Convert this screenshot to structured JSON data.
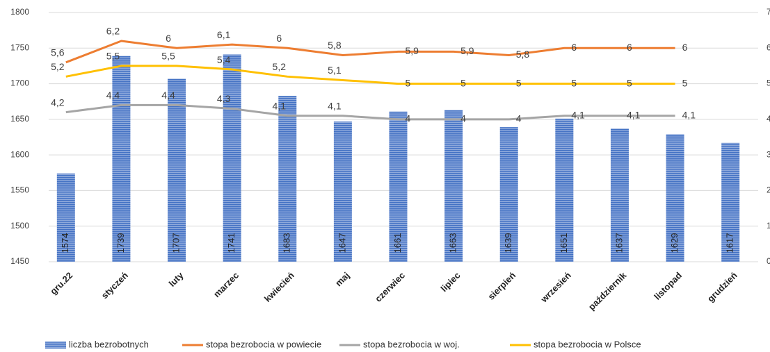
{
  "chart_data": {
    "type": "bar_line",
    "categories": [
      "gru.22",
      "styczeń",
      "luty",
      "marzec",
      "kwiecień",
      "maj",
      "czerwiec",
      "lipiec",
      "sierpień",
      "wrzesień",
      "październik",
      "listopad",
      "grudzień"
    ],
    "series": [
      {
        "name": "liczba bezrobotnych",
        "type": "bar",
        "color": "#4472c4",
        "values": [
          1574,
          1739,
          1707,
          1741,
          1683,
          1647,
          1661,
          1663,
          1639,
          1651,
          1637,
          1629,
          1617
        ]
      },
      {
        "name": "stopa bezrobocia w powiecie",
        "type": "line",
        "axis": "y2",
        "color": "#ed7d31",
        "values": [
          5.6,
          6.2,
          6,
          6.1,
          6,
          5.8,
          5.9,
          5.9,
          5.8,
          6,
          6,
          6,
          null
        ],
        "value_labels": [
          "5,6",
          "6,2",
          "6",
          "6,1",
          "6",
          "5,8",
          "5,9",
          "5,9",
          "5,8",
          "6",
          "6",
          "6",
          null
        ]
      },
      {
        "name": "stopa bezrobocia w woj.",
        "type": "line",
        "axis": "y2",
        "color": "#a5a5a5",
        "values": [
          4.2,
          4.4,
          4.4,
          4.3,
          4.1,
          4.1,
          4,
          4,
          4,
          4.1,
          4.1,
          4.1,
          null
        ],
        "value_labels": [
          "4,2",
          "4,4",
          "4,4",
          "4,3",
          "4,1",
          "4,1",
          "4",
          "4",
          "4",
          "4,1",
          "4,1",
          "4,1",
          null
        ]
      },
      {
        "name": "stopa bezrobocia w Polsce",
        "type": "line",
        "axis": "y2",
        "color": "#ffc000",
        "values": [
          5.2,
          5.5,
          5.5,
          5.4,
          5.2,
          5.1,
          5,
          5,
          5,
          5,
          5,
          5,
          null
        ],
        "value_labels": [
          "5,2",
          "5,5",
          "5,5",
          "5,4",
          "5,2",
          "5,1",
          "5",
          "5",
          "5",
          "5",
          "5",
          "5",
          null
        ]
      }
    ],
    "ylim": [
      1450,
      1800
    ],
    "yticks": [
      1450,
      1500,
      1550,
      1600,
      1650,
      1700,
      1750,
      1800
    ],
    "y2lim": [
      0,
      7
    ],
    "y2ticks": [
      0,
      1,
      2,
      3,
      4,
      5,
      6,
      7
    ],
    "grid": true,
    "legend": "bottom"
  }
}
